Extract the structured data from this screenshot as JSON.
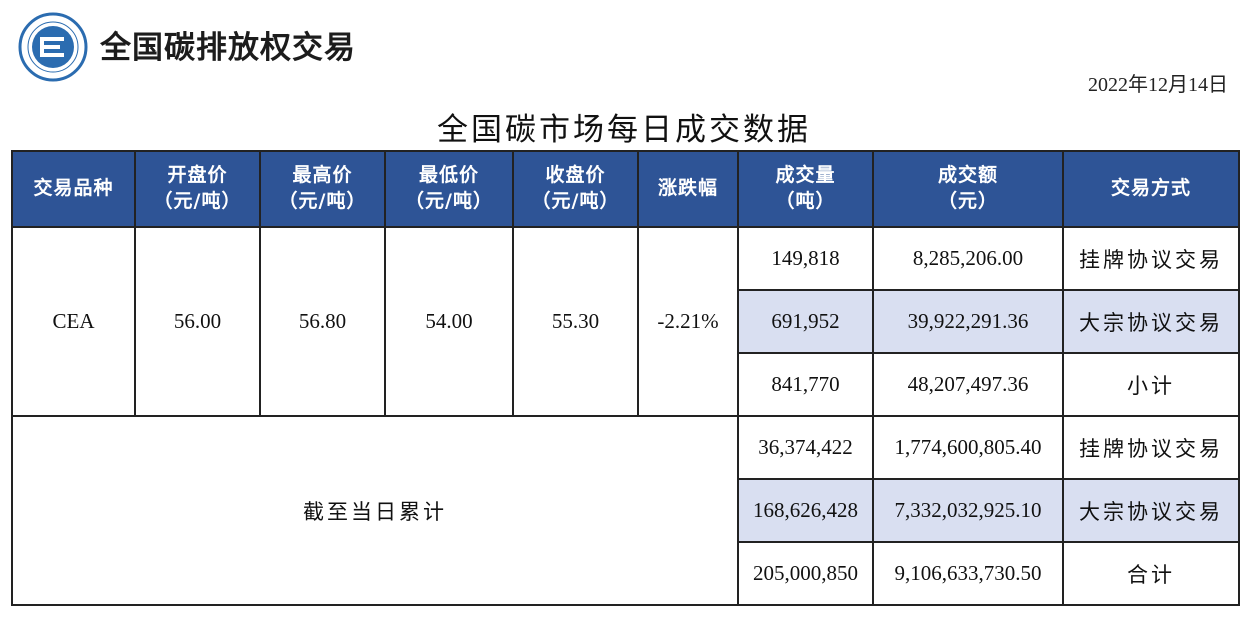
{
  "brand": {
    "name": "全国碳排放权交易"
  },
  "date": "2022年12月14日",
  "title": "全国碳市场每日成交数据",
  "colors": {
    "header_bg": "#2e5496",
    "highlight_row": "#d9dff1",
    "logo_blue": "#2b6cb0"
  },
  "table": {
    "headers": {
      "variety": "交易品种",
      "open_l1": "开盘价",
      "open_l2": "（元/吨）",
      "high_l1": "最高价",
      "high_l2": "（元/吨）",
      "low_l1": "最低价",
      "low_l2": "（元/吨）",
      "close_l1": "收盘价",
      "close_l2": "（元/吨）",
      "change": "涨跌幅",
      "volume_l1": "成交量",
      "volume_l2": "（吨）",
      "amount_l1": "成交额",
      "amount_l2": "（元）",
      "method": "交易方式"
    },
    "daily": {
      "variety": "CEA",
      "open": "56.00",
      "high": "56.80",
      "low": "54.00",
      "close": "55.30",
      "change": "-2.21%",
      "rows": [
        {
          "volume": "149,818",
          "amount": "8,285,206.00",
          "method": "挂牌协议交易"
        },
        {
          "volume": "691,952",
          "amount": "39,922,291.36",
          "method": "大宗协议交易"
        },
        {
          "volume": "841,770",
          "amount": "48,207,497.36",
          "method": "小计"
        }
      ]
    },
    "cumulative": {
      "label": "截至当日累计",
      "rows": [
        {
          "volume": "36,374,422",
          "amount": "1,774,600,805.40",
          "method": "挂牌协议交易"
        },
        {
          "volume": "168,626,428",
          "amount": "7,332,032,925.10",
          "method": "大宗协议交易"
        },
        {
          "volume": "205,000,850",
          "amount": "9,106,633,730.50",
          "method": "合计"
        }
      ]
    }
  }
}
